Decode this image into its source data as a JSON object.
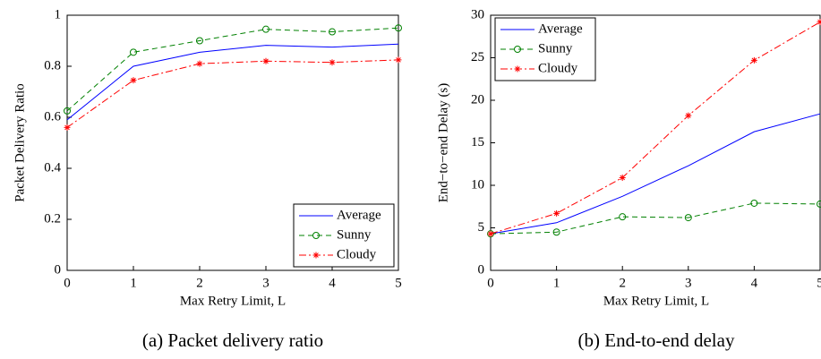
{
  "chart_data": [
    {
      "type": "line",
      "caption": "(a) Packet delivery ratio",
      "xlabel": "Max Retry Limit, L",
      "ylabel": "Packet Delivery Ratio",
      "x": [
        0,
        1,
        2,
        3,
        4,
        5
      ],
      "xlim": [
        0,
        5
      ],
      "xticks": [
        0,
        1,
        2,
        3,
        4,
        5
      ],
      "ylim": [
        0,
        1
      ],
      "yticks": [
        0,
        0.2,
        0.4,
        0.6,
        0.8,
        1
      ],
      "legend": "lower right",
      "series": [
        {
          "name": "Average",
          "color": "#0000ff",
          "linestyle": "-",
          "marker": "none",
          "values": [
            0.59,
            0.8,
            0.855,
            0.882,
            0.875,
            0.887
          ]
        },
        {
          "name": "Sunny",
          "color": "#008000",
          "linestyle": "--",
          "marker": "o",
          "values": [
            0.625,
            0.855,
            0.9,
            0.945,
            0.935,
            0.95
          ]
        },
        {
          "name": "Cloudy",
          "color": "#ff0000",
          "linestyle": "-.",
          "marker": "*",
          "values": [
            0.56,
            0.745,
            0.81,
            0.82,
            0.815,
            0.825
          ]
        }
      ]
    },
    {
      "type": "line",
      "caption": "(b) End-to-end delay",
      "xlabel": "Max Retry Limit, L",
      "ylabel": "End−to−end Delay (s)",
      "x": [
        0,
        1,
        2,
        3,
        4,
        5
      ],
      "xlim": [
        0,
        5
      ],
      "xticks": [
        0,
        1,
        2,
        3,
        4,
        5
      ],
      "ylim": [
        0,
        30
      ],
      "yticks": [
        0,
        5,
        10,
        15,
        20,
        25,
        30
      ],
      "legend": "upper left",
      "series": [
        {
          "name": "Average",
          "color": "#0000ff",
          "linestyle": "-",
          "marker": "none",
          "values": [
            4.3,
            5.6,
            8.7,
            12.3,
            16.3,
            18.4
          ]
        },
        {
          "name": "Sunny",
          "color": "#008000",
          "linestyle": "--",
          "marker": "o",
          "values": [
            4.3,
            4.5,
            6.3,
            6.2,
            7.9,
            7.8
          ]
        },
        {
          "name": "Cloudy",
          "color": "#ff0000",
          "linestyle": "-.",
          "marker": "*",
          "values": [
            4.3,
            6.7,
            10.9,
            18.2,
            24.7,
            29.2
          ]
        }
      ]
    }
  ]
}
